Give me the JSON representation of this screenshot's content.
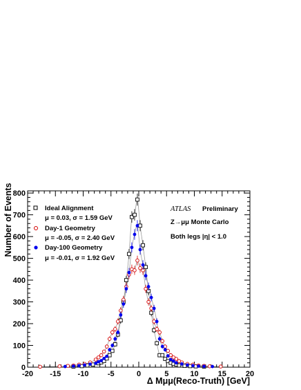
{
  "chart_data": {
    "type": "scatter",
    "xlabel": "Δ Mμμ(Reco-Truth) [GeV]",
    "ylabel": "Number of Events",
    "xlim": [
      -20,
      20
    ],
    "ylim": [
      0,
      810
    ],
    "x_ticks": [
      "-20",
      "-15",
      "-10",
      "-5",
      "0",
      "5",
      "10",
      "15",
      "20"
    ],
    "y_ticks": [
      "0",
      "100",
      "200",
      "300",
      "400",
      "500",
      "600",
      "700",
      "800"
    ],
    "legend_position": "top-left",
    "annotations": {
      "atlas": "ATLAS",
      "preliminary": "Preliminary",
      "process": "Z→μμ Monte Carlo",
      "cut": "Both legs |η| < 1.0"
    },
    "series": [
      {
        "name": "Ideal Alignment",
        "stats": "μ =  0.03,  σ =  1.59 GeV",
        "marker": "open-square",
        "color": "#000000",
        "x": [
          -11.75,
          -10.25,
          -9.25,
          -8.25,
          -7.25,
          -6.75,
          -6.25,
          -5.75,
          -5.25,
          -4.75,
          -4.25,
          -3.75,
          -3.25,
          -2.75,
          -2.25,
          -1.75,
          -1.25,
          -0.75,
          -0.25,
          0.25,
          0.75,
          1.25,
          1.75,
          2.25,
          2.75,
          3.25,
          3.75,
          4.25,
          4.75,
          5.25,
          5.75,
          6.25,
          6.75,
          7.25,
          8.25,
          9.25,
          10.25,
          11.75
        ],
        "y": [
          3,
          5,
          8,
          12,
          18,
          22,
          28,
          40,
          55,
          75,
          105,
          150,
          215,
          300,
          400,
          520,
          690,
          700,
          770,
          650,
          560,
          460,
          350,
          250,
          170,
          110,
          55,
          55,
          38,
          28,
          20,
          15,
          12,
          8,
          6,
          5,
          4,
          3
        ]
      },
      {
        "name": "Day-1 Geometry",
        "stats": "μ = -0.05,  σ =  2.40 GeV",
        "marker": "open-circle",
        "color": "#d40000",
        "x": [
          -17.75,
          -14.25,
          -12.75,
          -11.75,
          -10.75,
          -9.75,
          -8.75,
          -7.75,
          -7.25,
          -6.75,
          -6.25,
          -5.75,
          -5.25,
          -4.75,
          -4.25,
          -3.75,
          -3.25,
          -2.75,
          -2.25,
          -1.75,
          -1.25,
          -0.75,
          -0.25,
          0.25,
          0.75,
          1.25,
          1.75,
          2.25,
          2.75,
          3.25,
          3.75,
          4.25,
          4.75,
          5.25,
          5.75,
          6.25,
          6.75,
          7.25,
          7.75,
          8.75,
          9.75,
          10.75,
          11.75,
          12.75,
          14.75
        ],
        "y": [
          2,
          4,
          6,
          8,
          12,
          15,
          22,
          35,
          45,
          55,
          72,
          95,
          130,
          160,
          175,
          210,
          260,
          310,
          370,
          425,
          450,
          445,
          490,
          455,
          445,
          360,
          300,
          270,
          210,
          175,
          160,
          120,
          95,
          75,
          55,
          45,
          38,
          28,
          22,
          15,
          12,
          8,
          6,
          4,
          3
        ]
      },
      {
        "name": "Day-100 Geometry",
        "stats": "μ = -0.01,  σ =  1.92 GeV",
        "marker": "filled-circle",
        "color": "#0000ee",
        "x": [
          -13.25,
          -11.75,
          -10.75,
          -9.75,
          -8.75,
          -7.75,
          -7.25,
          -6.75,
          -6.25,
          -5.75,
          -5.25,
          -4.75,
          -4.25,
          -3.75,
          -3.25,
          -2.75,
          -2.25,
          -1.75,
          -1.25,
          -0.75,
          -0.25,
          0.25,
          0.75,
          1.25,
          1.75,
          2.25,
          2.75,
          3.25,
          3.75,
          4.25,
          4.75,
          5.25,
          5.75,
          6.25,
          6.75,
          7.75,
          8.75,
          9.75,
          10.75,
          11.75,
          13.25
        ],
        "y": [
          3,
          5,
          7,
          10,
          14,
          18,
          25,
          30,
          40,
          50,
          80,
          100,
          130,
          160,
          240,
          290,
          360,
          435,
          550,
          610,
          650,
          540,
          470,
          420,
          370,
          320,
          270,
          210,
          130,
          95,
          80,
          52,
          35,
          28,
          20,
          15,
          10,
          7,
          5,
          4,
          3
        ]
      }
    ]
  }
}
